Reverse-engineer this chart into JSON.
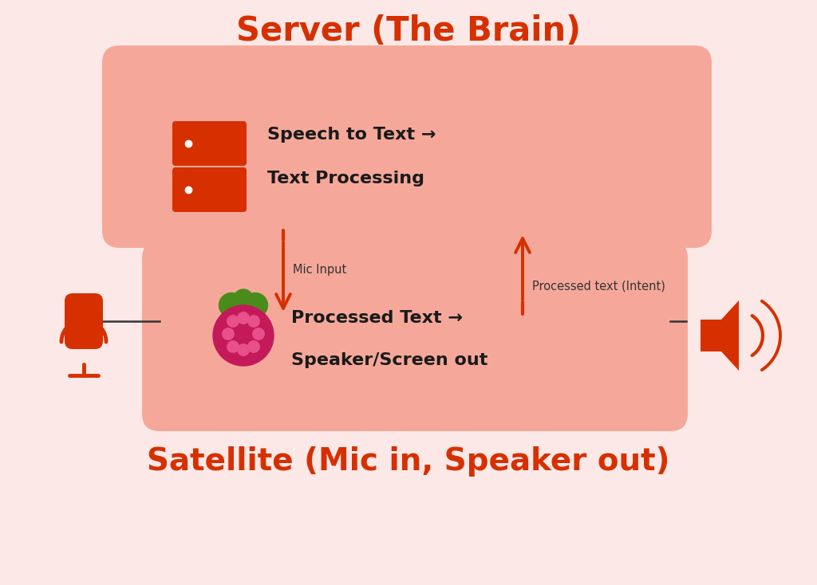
{
  "bg_color": "#fce8e6",
  "box_color": "#f5a89a",
  "red_color": "#d63000",
  "title_server": "Server (The Brain)",
  "title_satellite": "Satellite (Mic in, Speaker out)",
  "server_text1": "Speech to Text →",
  "server_text2": "Text Processing",
  "satellite_text1": "Processed Text →",
  "satellite_text2": "Speaker/Screen out",
  "label_mic": "Mic Input",
  "label_processed": "Processed text (Intent)",
  "fig_width": 10.24,
  "fig_height": 7.34
}
